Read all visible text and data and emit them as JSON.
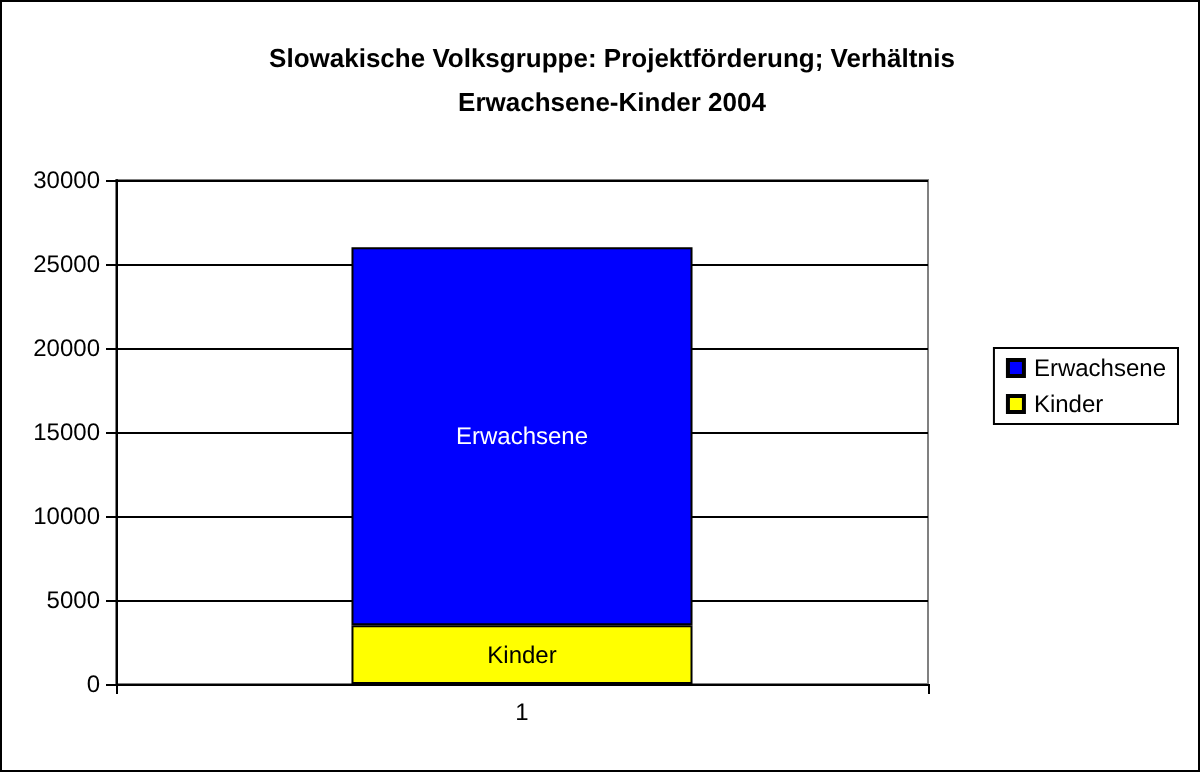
{
  "chart_data": {
    "type": "bar",
    "title": "Slowakische Volksgruppe: Projektförderung; Verhältnis\nErwachsene-Kinder 2004",
    "categories": [
      "1"
    ],
    "stacked": true,
    "series": [
      {
        "name": "Kinder",
        "color": "#ffff00",
        "values": [
          3500
        ]
      },
      {
        "name": "Erwachsene",
        "color": "#0000ff",
        "values": [
          22500
        ]
      }
    ],
    "ylim": [
      0,
      30000
    ],
    "yticks": [
      0,
      5000,
      10000,
      15000,
      20000,
      25000,
      30000
    ],
    "grid": "y",
    "legend": "right"
  }
}
